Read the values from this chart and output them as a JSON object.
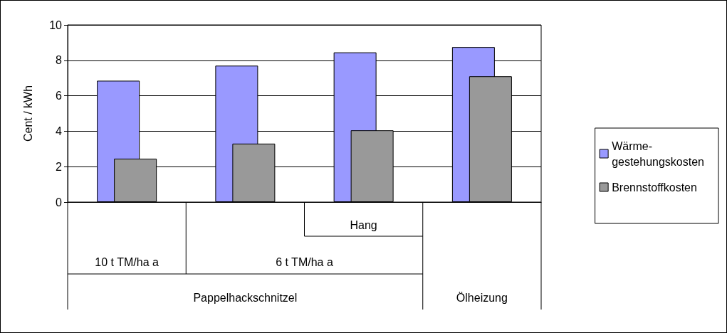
{
  "chart_data": {
    "type": "bar",
    "categories": [
      null,
      null,
      "Hang",
      null
    ],
    "series": [
      {
        "name": "Wärme-gestehungskosten",
        "color": "#9999ff",
        "values": [
          6.85,
          7.7,
          8.45,
          8.75
        ]
      },
      {
        "name": "Brennstoffkosten",
        "color": "#999999",
        "values": [
          2.45,
          3.3,
          4.05,
          7.1
        ]
      }
    ],
    "ylabel": "Cent / kWh",
    "ylim": [
      0,
      10
    ],
    "yticks": [
      0,
      2,
      4,
      6,
      8,
      10
    ],
    "annotations": [
      "10 t TM/ha a",
      "6 t TM/ha a",
      "Pappelhackschnitzel",
      "Ölheizung"
    ],
    "grid": "y",
    "legend": "right"
  }
}
